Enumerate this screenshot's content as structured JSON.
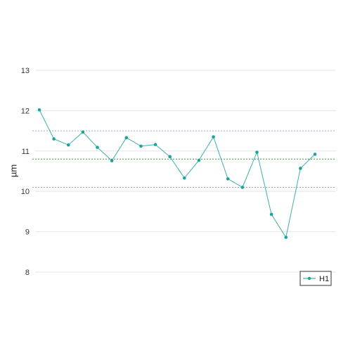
{
  "chart_data": {
    "type": "line",
    "title": "",
    "xlabel": "",
    "ylabel": "µm",
    "ylim": [
      8,
      13
    ],
    "yticks": [
      "8",
      "9",
      "10",
      "11",
      "12",
      "13"
    ],
    "grid": true,
    "legend_position": "bottom-right",
    "series": [
      {
        "name": "H1",
        "color": "#1aa39a",
        "values": [
          12.02,
          11.3,
          11.15,
          11.47,
          11.09,
          10.76,
          11.33,
          11.12,
          11.16,
          10.86,
          10.33,
          10.77,
          11.35,
          10.31,
          10.1,
          10.97,
          9.43,
          8.86,
          10.57,
          10.92
        ]
      }
    ],
    "reference_lines": [
      {
        "type": "upper",
        "value": 11.5,
        "color": "#8aaee0",
        "style": "dotted"
      },
      {
        "type": "mean",
        "value": 10.8,
        "color": "#3a9a3a",
        "style": "dotted"
      },
      {
        "type": "lower",
        "value": 10.1,
        "color": "#8aaee0",
        "style": "dotted"
      }
    ]
  }
}
